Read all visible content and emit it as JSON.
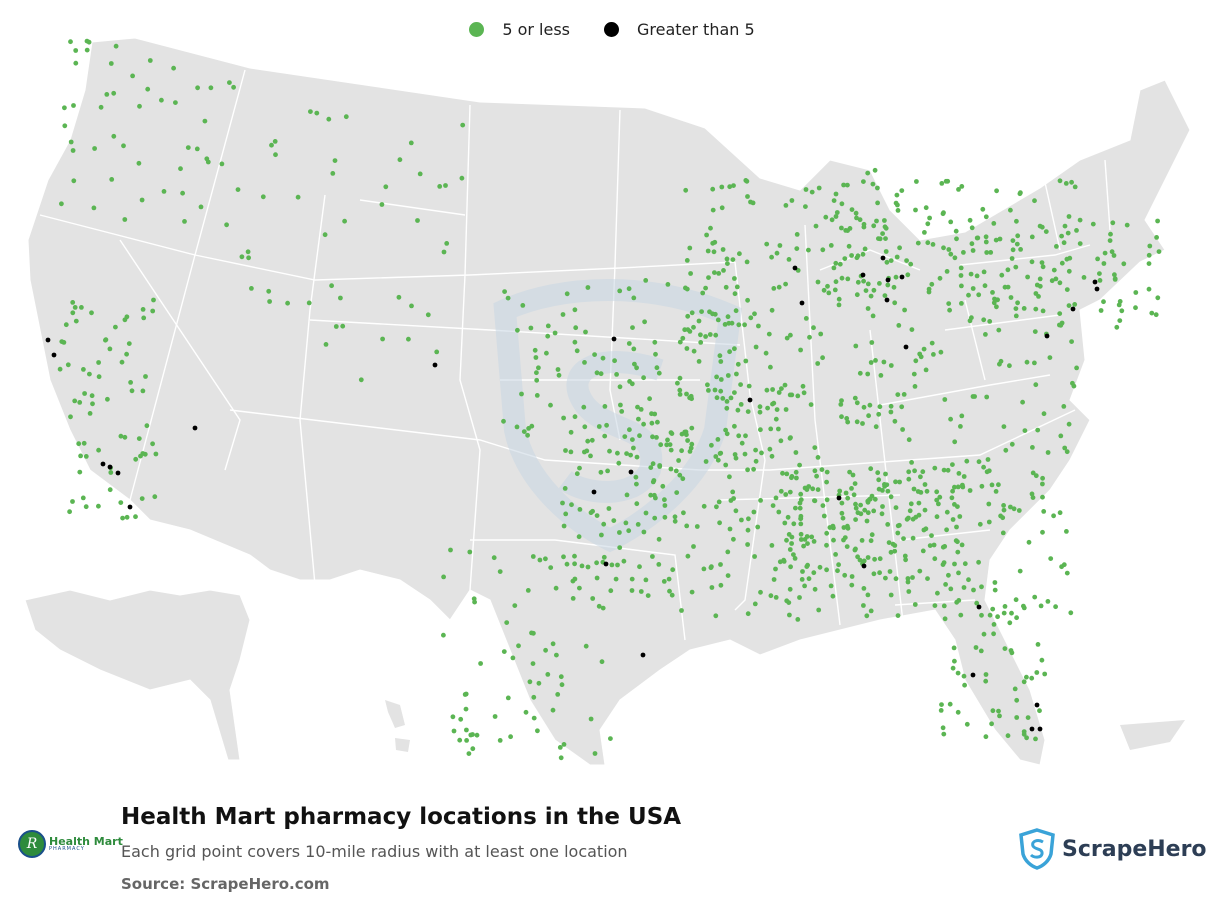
{
  "legend": {
    "low": {
      "label": "5 or less",
      "color": "#5bb553"
    },
    "high": {
      "label": "Greater than 5",
      "color": "#000000"
    }
  },
  "footer": {
    "title": "Health Mart pharmacy locations in the USA",
    "subtitle": "Each grid point covers 10-mile radius with at least one location",
    "source": "Source: ScrapeHero.com"
  },
  "brand_logo": {
    "name": "Health Mart",
    "sub": "PHARMACY",
    "mark": "R",
    "icon": "health-mart-logo"
  },
  "publisher_logo": {
    "name": "ScrapeHero",
    "icon": "scrapehero-shield-icon"
  },
  "colors": {
    "land": "#e3e3e3",
    "state_border": "#ffffff",
    "watermark": "#c9d7e3"
  },
  "map": {
    "region": "Contiguous USA with Alaska and Hawaii insets",
    "projection": "Albers"
  },
  "dense_clusters": [
    {
      "region": "California coast",
      "level": "high"
    },
    {
      "region": "Southern California",
      "level": "high"
    },
    {
      "region": "Michigan",
      "level": "high"
    },
    {
      "region": "New York City area",
      "level": "high"
    },
    {
      "region": "Texas (Dallas)",
      "level": "high"
    },
    {
      "region": "Texas (Houston)",
      "level": "high"
    },
    {
      "region": "Florida",
      "level": "high"
    },
    {
      "region": "Georgia (Atlanta)",
      "level": "high"
    },
    {
      "region": "Tennessee / Kentucky",
      "level": "low"
    },
    {
      "region": "Midwest / Iowa",
      "level": "low"
    }
  ]
}
